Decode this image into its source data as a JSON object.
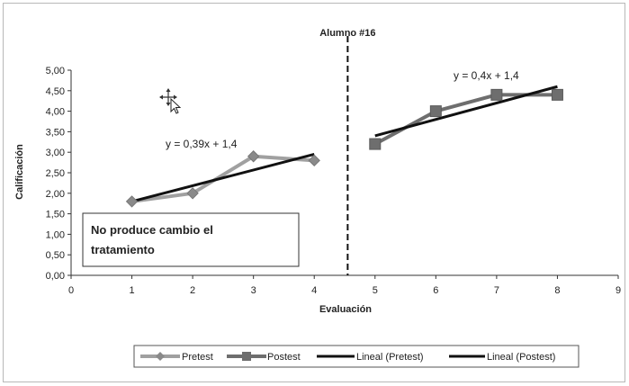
{
  "chart_data": {
    "type": "line",
    "xlabel": "Evaluación",
    "ylabel": "Calificación",
    "xlim": [
      0,
      9
    ],
    "ylim": [
      0,
      5
    ],
    "x_ticks": [
      "0",
      "1",
      "2",
      "3",
      "4",
      "5",
      "6",
      "7",
      "8",
      "9"
    ],
    "y_ticks": [
      "0,00",
      "0,50",
      "1,00",
      "1,50",
      "2,00",
      "2,50",
      "3,00",
      "3,50",
      "4,00",
      "4,50",
      "5,00"
    ],
    "grid": false,
    "series": [
      {
        "name": "Pretest",
        "color": "#a0a0a0",
        "marker": "diamond",
        "x": [
          1,
          2,
          3,
          4
        ],
        "y": [
          1.8,
          2.0,
          2.9,
          2.8
        ]
      },
      {
        "name": "Postest",
        "color": "#6e6e6e",
        "marker": "square",
        "x": [
          5,
          6,
          7,
          8
        ],
        "y": [
          3.2,
          4.0,
          4.4,
          4.4
        ]
      },
      {
        "name": "Lineal (Pretest)",
        "color": "#111111",
        "type": "trendline",
        "x": [
          1,
          4
        ],
        "y": [
          1.8,
          2.95
        ]
      },
      {
        "name": "Lineal (Postest)",
        "color": "#111111",
        "type": "trendline",
        "x": [
          5,
          8
        ],
        "y": [
          3.4,
          4.6
        ]
      }
    ],
    "vertical_marker": {
      "x": 4.55,
      "label": "Alumno #16",
      "style": "dashed"
    },
    "annotations": {
      "pretest_equation": "y = 0,39x + 1,4",
      "postest_equation": "y = 0,4x + 1,4",
      "note_line1": "No produce cambio el",
      "note_line2": "tratamiento"
    },
    "legend_position": "bottom"
  }
}
